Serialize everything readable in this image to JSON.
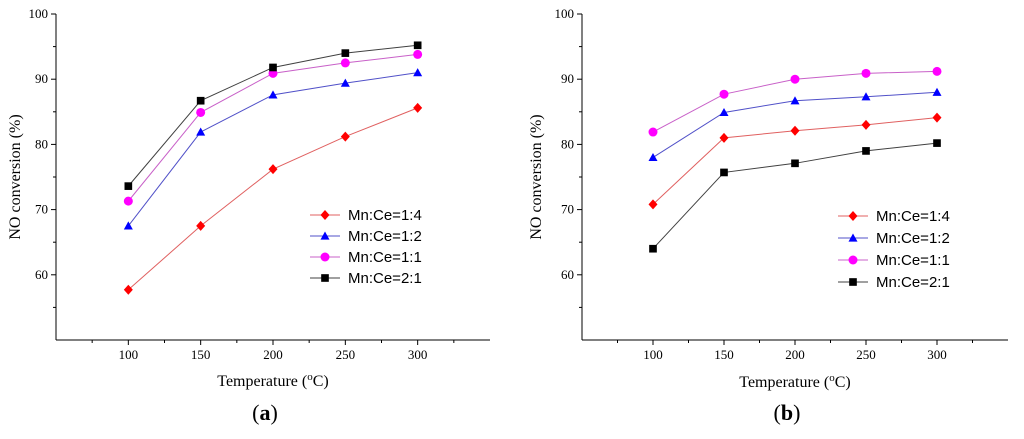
{
  "chart_data": [
    {
      "type": "line",
      "panel_label": "a",
      "xlabel_text": "Temperature (",
      "xlabel_unit": "o",
      "xlabel_suffix": "C)",
      "ylabel": "NO conversion (%)",
      "x": [
        100,
        150,
        200,
        250,
        300
      ],
      "xlim": [
        50,
        350
      ],
      "ylim": [
        50,
        100
      ],
      "yticks": [
        60,
        70,
        80,
        90,
        100
      ],
      "grid": false,
      "legend_position": "bottom-right",
      "series": [
        {
          "name": "Mn:Ce=1:4",
          "marker": "diamond",
          "color": "#ff0000",
          "line_color": "#e06060",
          "values": [
            57.7,
            67.5,
            76.2,
            81.2,
            85.6
          ]
        },
        {
          "name": "Mn:Ce=1:2",
          "marker": "triangle",
          "color": "#0000ff",
          "line_color": "#5050c8",
          "values": [
            67.5,
            81.9,
            87.6,
            89.4,
            91.0
          ]
        },
        {
          "name": "Mn:Ce=1:1",
          "marker": "circle",
          "color": "#ff00ff",
          "line_color": "#c860c8",
          "values": [
            71.3,
            84.9,
            90.9,
            92.5,
            93.8
          ]
        },
        {
          "name": "Mn:Ce=2:1",
          "marker": "square",
          "color": "#000000",
          "line_color": "#404040",
          "values": [
            73.6,
            86.7,
            91.8,
            94.0,
            95.2
          ]
        }
      ]
    },
    {
      "type": "line",
      "panel_label": "b",
      "xlabel_text": "Temperature (",
      "xlabel_unit": "o",
      "xlabel_suffix": "C)",
      "ylabel": "NO conversion (%)",
      "x": [
        100,
        150,
        200,
        250,
        300
      ],
      "xlim": [
        50,
        350
      ],
      "ylim": [
        50,
        100
      ],
      "yticks": [
        60,
        70,
        80,
        90,
        100
      ],
      "grid": false,
      "legend_position": "bottom-right",
      "series": [
        {
          "name": "Mn:Ce=1:4",
          "marker": "diamond",
          "color": "#ff0000",
          "line_color": "#e06060",
          "values": [
            70.8,
            81.0,
            82.1,
            83.0,
            84.1
          ]
        },
        {
          "name": "Mn:Ce=1:2",
          "marker": "triangle",
          "color": "#0000ff",
          "line_color": "#5050c8",
          "values": [
            78.0,
            84.9,
            86.7,
            87.3,
            88.0
          ]
        },
        {
          "name": "Mn:Ce=1:1",
          "marker": "circle",
          "color": "#ff00ff",
          "line_color": "#c860c8",
          "values": [
            81.9,
            87.7,
            90.0,
            90.9,
            91.2
          ]
        },
        {
          "name": "Mn:Ce=2:1",
          "marker": "square",
          "color": "#000000",
          "line_color": "#404040",
          "values": [
            64.0,
            75.7,
            77.1,
            79.0,
            80.2
          ]
        }
      ]
    }
  ]
}
